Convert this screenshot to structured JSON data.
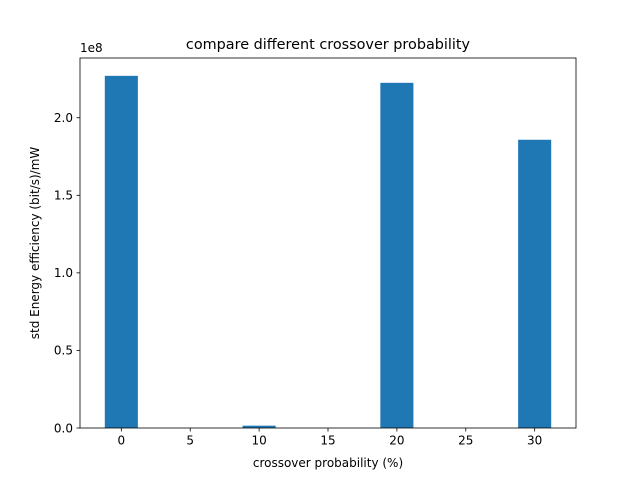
{
  "chart_data": {
    "type": "bar",
    "title": "compare different crossover probability",
    "xlabel": "crossover probability (%)",
    "ylabel": "std Energy efficiency (bit/s)/mW",
    "y_offset_label": "1e8",
    "x": [
      0,
      10,
      20,
      30
    ],
    "values": [
      227000000,
      1500000,
      222500000,
      185800000
    ],
    "bar_width": 2.4,
    "bar_color": "#1f77b4",
    "xlim": [
      -3,
      33
    ],
    "ylim": [
      0,
      238500000
    ],
    "xticks": [
      0,
      5,
      10,
      15,
      20,
      25,
      30
    ],
    "xtick_labels": [
      "0",
      "5",
      "10",
      "15",
      "20",
      "25",
      "30"
    ],
    "yticks": [
      0,
      50000000,
      100000000,
      150000000,
      200000000
    ],
    "ytick_labels": [
      "0.0",
      "0.5",
      "1.0",
      "1.5",
      "2.0"
    ],
    "grid": false,
    "legend": "none"
  }
}
